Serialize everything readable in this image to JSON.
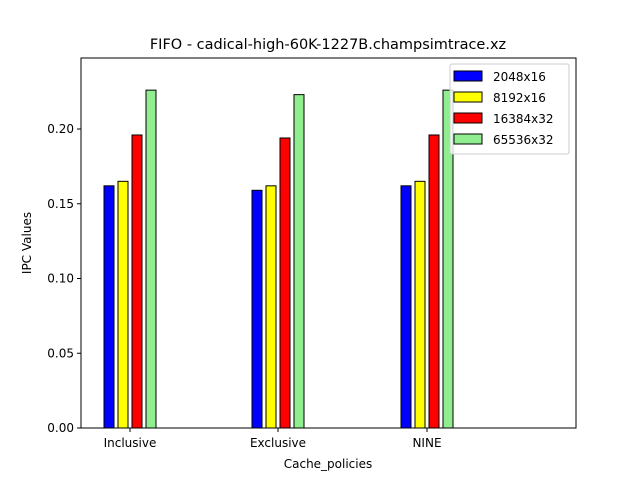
{
  "chart_data": {
    "type": "bar",
    "title": "FIFO - cadical-high-60K-1227B.champsimtrace.xz",
    "xlabel": "Cache_policies",
    "ylabel": "IPC Values",
    "categories": [
      "Inclusive",
      "Exclusive",
      "NINE"
    ],
    "ylim": [
      0,
      0.2475
    ],
    "yticks": [
      "0.00",
      "0.05",
      "0.10",
      "0.15",
      "0.20"
    ],
    "grid": false,
    "legend_position": "top-right",
    "series": [
      {
        "name": "2048x16",
        "color": "#0000ff",
        "values": [
          0.162,
          0.159,
          0.162
        ]
      },
      {
        "name": "8192x16",
        "color": "#ffff00",
        "values": [
          0.165,
          0.162,
          0.165
        ]
      },
      {
        "name": "16384x32",
        "color": "#ff0000",
        "values": [
          0.196,
          0.194,
          0.196
        ]
      },
      {
        "name": "65536x32",
        "color": "#90ee90",
        "values": [
          0.226,
          0.223,
          0.226
        ]
      }
    ]
  }
}
